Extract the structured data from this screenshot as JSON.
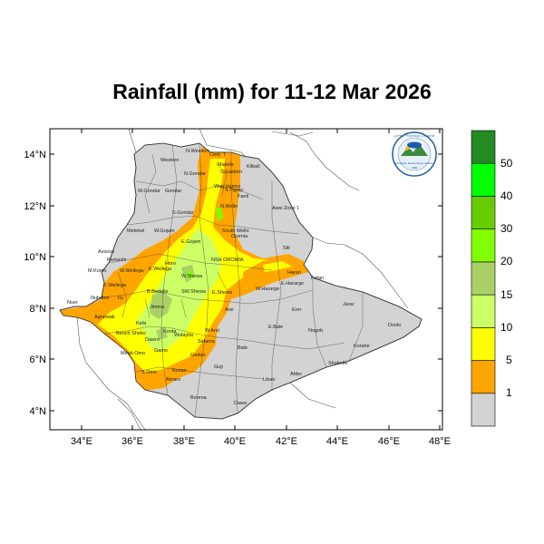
{
  "title": "Rainfall (mm) for 11-12 Mar 2026",
  "map": {
    "lat_ticks": [
      "14°N",
      "12°N",
      "10°N",
      "8°N",
      "6°N",
      "4°N"
    ],
    "lon_ticks": [
      "34°E",
      "36°E",
      "38°E",
      "40°E",
      "42°E",
      "44°E",
      "46°E",
      "48°E"
    ],
    "zone_labels": [
      "N.Western",
      "Western",
      "Cent. T",
      "Makele",
      "S.Eastern",
      "Kilbali",
      "N.Gondar",
      "Wag Hamra",
      "S.Tigray",
      "W.Gondar",
      "Gondar",
      "Fanti",
      "Awsi Zone 1",
      "Metekel",
      "S.Gondar",
      "N.Wello",
      "South Wello",
      "E.Gojam",
      "Oromia",
      "Siti",
      "Assosa",
      "W.Gojam",
      "NSH OROMIA",
      "Kamashi",
      "M.Komo",
      "W.Wellega",
      "E.Wellega",
      "Horo",
      "Harari",
      "K.Wellega",
      "W.Shewa",
      "Fafan",
      "Illubabor",
      "Jimma",
      "E.Hararge",
      "Nuer",
      "Ilu",
      "B.Bedelle",
      "SW.Shewa",
      "E.Shewa",
      "W.Hararge",
      "Jarar",
      "Agnewak",
      "Kefa",
      "Arsi",
      "Erer",
      "Bench Sheko",
      "Konta",
      "Wolayita",
      "W.Arsi",
      "E.Bale",
      "Nogob",
      "Doolo",
      "Sidama",
      "Dawro",
      "Gamo",
      "Bale",
      "Korahe",
      "Mirab Omo",
      "Gedeo",
      "Shabelle",
      "S.Omo",
      "Konso",
      "Amaro",
      "Guji",
      "Liban",
      "Afder",
      "Borena",
      "Dawa"
    ]
  },
  "logo": {
    "name_amharic": "ኢትዮጵያ ሚቲዎሮሎጂ ኢንስቲትዩት",
    "name_english": "Ethiopian Meteorology Institute",
    "est_year": "1980"
  },
  "legend": {
    "labels": [
      "1",
      "5",
      "10",
      "15",
      "20",
      "30",
      "40",
      "50"
    ],
    "colors": [
      "#d3d3d3",
      "#ffa500",
      "#ffff00",
      "#ccff66",
      "#aad067",
      "#80ff00",
      "#66cc00",
      "#00ff00",
      "#238b22"
    ]
  }
}
